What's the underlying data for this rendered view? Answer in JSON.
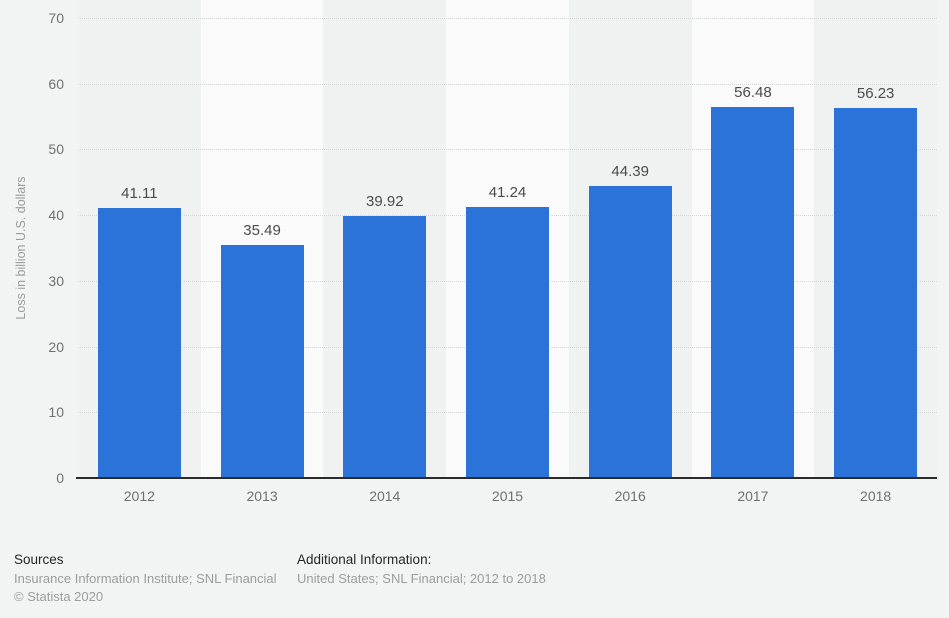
{
  "chart_data": {
    "type": "bar",
    "categories": [
      "2012",
      "2013",
      "2014",
      "2015",
      "2016",
      "2017",
      "2018"
    ],
    "values": [
      41.11,
      35.49,
      39.92,
      41.24,
      44.39,
      56.48,
      56.23
    ],
    "value_labels": [
      "41.11",
      "35.49",
      "39.92",
      "41.24",
      "44.39",
      "56.48",
      "56.23"
    ],
    "title": "",
    "xlabel": "",
    "ylabel": "Loss in billion U.S. dollars",
    "ylim": [
      0,
      70
    ],
    "yticks": [
      0,
      10,
      20,
      30,
      40,
      50,
      60,
      70
    ],
    "grid": "horizontal-dotted",
    "legend": "none",
    "bar_color": "#2b72d9",
    "stripe_dark": "#f0f1f1",
    "stripe_light": "#fafafa"
  },
  "footer": {
    "sources_heading": "Sources",
    "sources_line": "Insurance Information Institute; SNL Financial",
    "copyright": "© Statista 2020",
    "additional_heading": "Additional Information:",
    "additional_line": "United States; SNL Financial; 2012 to 2018"
  },
  "colors": {
    "background": "#f2f3f3",
    "bar": "#2b72d9",
    "axis_line": "#2b2b2b",
    "gridline": "#d5d6d6",
    "tick_text": "#707070",
    "value_text": "#4b4b4b",
    "axis_title_text": "#9a9a9a",
    "footer_heading_text": "#262626",
    "footer_body_text": "#9c9c9c"
  }
}
